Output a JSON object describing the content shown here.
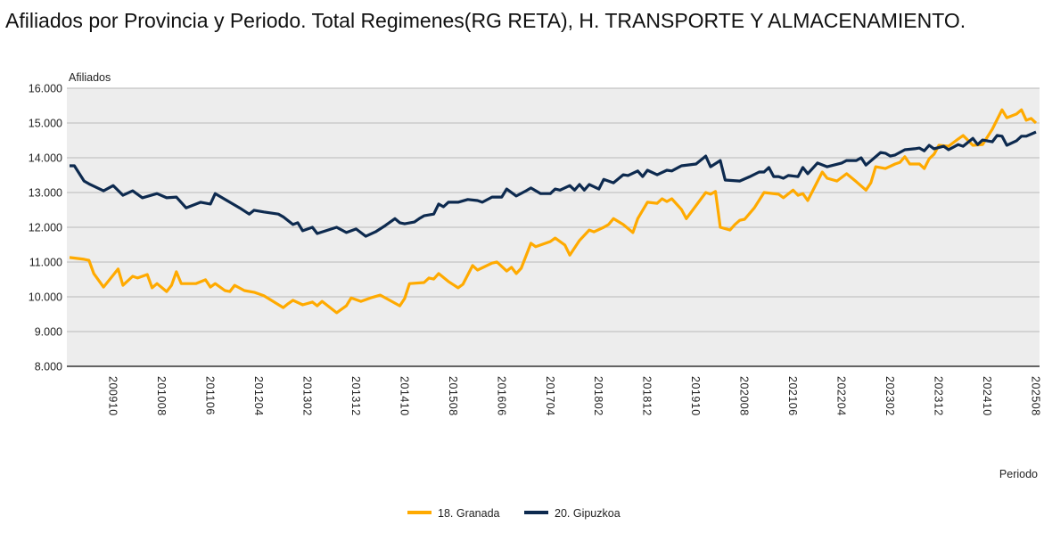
{
  "chart_data": {
    "type": "line",
    "title": "Afiliados por Provincia y Periodo. Total Regimenes(RG RETA), H. TRANSPORTE Y ALMACENAMIENTO.",
    "ylabel": "Afiliados",
    "xlabel": "Periodo",
    "ylim": [
      8000,
      16000
    ],
    "yticks": [
      16000,
      15000,
      14000,
      13000,
      12000,
      11000,
      10000,
      9000,
      8000
    ],
    "ytick_labels": [
      "16.000",
      "15.000",
      "14.000",
      "13.000",
      "12.000",
      "11.000",
      "10.000",
      "9.000",
      "8.000"
    ],
    "x_unit": "months since 200901",
    "xlim": [
      0,
      199
    ],
    "xticks": [
      9,
      19,
      29,
      39,
      49,
      59,
      69,
      79,
      89,
      99,
      109,
      119,
      129,
      139,
      149,
      159,
      169,
      179,
      189,
      199
    ],
    "xtick_labels": [
      "200910",
      "201008",
      "201106",
      "201204",
      "201302",
      "201312",
      "201410",
      "201508",
      "201606",
      "201704",
      "201802",
      "201812",
      "201910",
      "202008",
      "202106",
      "202204",
      "202302",
      "202312",
      "202410",
      "202508"
    ],
    "grid": true,
    "legend_position": "bottom-center",
    "series": [
      {
        "name": "18. Granada",
        "color": "#FFAA00",
        "points": [
          [
            0,
            11130
          ],
          [
            3,
            11080
          ],
          [
            4,
            11050
          ],
          [
            5,
            10670
          ],
          [
            7,
            10280
          ],
          [
            10,
            10800
          ],
          [
            11,
            10330
          ],
          [
            13,
            10590
          ],
          [
            14,
            10540
          ],
          [
            16,
            10640
          ],
          [
            17,
            10260
          ],
          [
            18,
            10380
          ],
          [
            20,
            10150
          ],
          [
            21,
            10330
          ],
          [
            22,
            10720
          ],
          [
            23,
            10380
          ],
          [
            26,
            10380
          ],
          [
            28,
            10490
          ],
          [
            29,
            10280
          ],
          [
            30,
            10380
          ],
          [
            32,
            10180
          ],
          [
            33,
            10150
          ],
          [
            34,
            10330
          ],
          [
            36,
            10180
          ],
          [
            38,
            10130
          ],
          [
            40,
            10030
          ],
          [
            44,
            9690
          ],
          [
            45,
            9800
          ],
          [
            46,
            9900
          ],
          [
            48,
            9770
          ],
          [
            50,
            9850
          ],
          [
            51,
            9740
          ],
          [
            52,
            9870
          ],
          [
            55,
            9540
          ],
          [
            57,
            9740
          ],
          [
            58,
            9970
          ],
          [
            60,
            9870
          ],
          [
            62,
            9970
          ],
          [
            64,
            10050
          ],
          [
            68,
            9740
          ],
          [
            69,
            9950
          ],
          [
            70,
            10380
          ],
          [
            73,
            10410
          ],
          [
            74,
            10540
          ],
          [
            75,
            10510
          ],
          [
            76,
            10670
          ],
          [
            78,
            10440
          ],
          [
            80,
            10260
          ],
          [
            81,
            10360
          ],
          [
            83,
            10900
          ],
          [
            84,
            10770
          ],
          [
            87,
            10970
          ],
          [
            88,
            11000
          ],
          [
            90,
            10740
          ],
          [
            91,
            10850
          ],
          [
            92,
            10670
          ],
          [
            93,
            10820
          ],
          [
            95,
            11540
          ],
          [
            96,
            11440
          ],
          [
            99,
            11590
          ],
          [
            100,
            11690
          ],
          [
            102,
            11490
          ],
          [
            103,
            11200
          ],
          [
            105,
            11620
          ],
          [
            107,
            11920
          ],
          [
            108,
            11870
          ],
          [
            110,
            12000
          ],
          [
            111,
            12080
          ],
          [
            112,
            12250
          ],
          [
            114,
            12080
          ],
          [
            116,
            11850
          ],
          [
            117,
            12250
          ],
          [
            119,
            12720
          ],
          [
            121,
            12690
          ],
          [
            122,
            12820
          ],
          [
            123,
            12740
          ],
          [
            124,
            12820
          ],
          [
            126,
            12510
          ],
          [
            127,
            12250
          ],
          [
            131,
            13000
          ],
          [
            132,
            12950
          ],
          [
            133,
            13030
          ],
          [
            134,
            12000
          ],
          [
            136,
            11920
          ],
          [
            137,
            12080
          ],
          [
            138,
            12200
          ],
          [
            139,
            12230
          ],
          [
            141,
            12560
          ],
          [
            143,
            13000
          ],
          [
            146,
            12950
          ],
          [
            147,
            12850
          ],
          [
            149,
            13070
          ],
          [
            150,
            12920
          ],
          [
            151,
            12970
          ],
          [
            152,
            12770
          ],
          [
            155,
            13590
          ],
          [
            156,
            13410
          ],
          [
            158,
            13330
          ],
          [
            160,
            13540
          ],
          [
            162,
            13310
          ],
          [
            164,
            13070
          ],
          [
            165,
            13280
          ],
          [
            166,
            13740
          ],
          [
            168,
            13690
          ],
          [
            170,
            13820
          ],
          [
            171,
            13870
          ],
          [
            172,
            14030
          ],
          [
            173,
            13820
          ],
          [
            175,
            13820
          ],
          [
            176,
            13690
          ],
          [
            177,
            13970
          ],
          [
            178,
            14100
          ],
          [
            179,
            14360
          ],
          [
            181,
            14330
          ],
          [
            183,
            14540
          ],
          [
            184,
            14640
          ],
          [
            186,
            14360
          ],
          [
            188,
            14380
          ],
          [
            190,
            14820
          ],
          [
            192,
            15380
          ],
          [
            193,
            15150
          ],
          [
            195,
            15260
          ],
          [
            196,
            15380
          ],
          [
            197,
            15080
          ],
          [
            198,
            15130
          ],
          [
            199,
            15000
          ]
        ]
      },
      {
        "name": "20. Gipuzkoa",
        "color": "#0D2A4F",
        "points": [
          [
            0,
            13770
          ],
          [
            1,
            13770
          ],
          [
            3,
            13330
          ],
          [
            4,
            13250
          ],
          [
            7,
            13050
          ],
          [
            9,
            13200
          ],
          [
            11,
            12920
          ],
          [
            13,
            13050
          ],
          [
            15,
            12850
          ],
          [
            18,
            12970
          ],
          [
            20,
            12850
          ],
          [
            22,
            12870
          ],
          [
            24,
            12560
          ],
          [
            27,
            12720
          ],
          [
            29,
            12670
          ],
          [
            30,
            12970
          ],
          [
            33,
            12720
          ],
          [
            35,
            12560
          ],
          [
            37,
            12380
          ],
          [
            38,
            12490
          ],
          [
            40,
            12440
          ],
          [
            43,
            12380
          ],
          [
            44,
            12300
          ],
          [
            46,
            12080
          ],
          [
            47,
            12130
          ],
          [
            48,
            11900
          ],
          [
            50,
            12000
          ],
          [
            51,
            11820
          ],
          [
            55,
            12000
          ],
          [
            57,
            11850
          ],
          [
            59,
            11950
          ],
          [
            61,
            11740
          ],
          [
            63,
            11870
          ],
          [
            65,
            12050
          ],
          [
            67,
            12250
          ],
          [
            68,
            12130
          ],
          [
            69,
            12100
          ],
          [
            71,
            12150
          ],
          [
            72,
            12250
          ],
          [
            73,
            12330
          ],
          [
            75,
            12380
          ],
          [
            76,
            12670
          ],
          [
            77,
            12590
          ],
          [
            78,
            12720
          ],
          [
            80,
            12720
          ],
          [
            82,
            12800
          ],
          [
            84,
            12770
          ],
          [
            85,
            12720
          ],
          [
            87,
            12870
          ],
          [
            89,
            12870
          ],
          [
            90,
            13100
          ],
          [
            92,
            12900
          ],
          [
            94,
            13050
          ],
          [
            95,
            13130
          ],
          [
            97,
            12970
          ],
          [
            99,
            12970
          ],
          [
            100,
            13100
          ],
          [
            101,
            13070
          ],
          [
            103,
            13200
          ],
          [
            104,
            13070
          ],
          [
            105,
            13230
          ],
          [
            106,
            13070
          ],
          [
            107,
            13230
          ],
          [
            109,
            13100
          ],
          [
            110,
            13380
          ],
          [
            112,
            13280
          ],
          [
            114,
            13510
          ],
          [
            115,
            13490
          ],
          [
            117,
            13620
          ],
          [
            118,
            13460
          ],
          [
            119,
            13640
          ],
          [
            121,
            13510
          ],
          [
            123,
            13640
          ],
          [
            124,
            13620
          ],
          [
            126,
            13770
          ],
          [
            129,
            13820
          ],
          [
            131,
            14050
          ],
          [
            132,
            13740
          ],
          [
            134,
            13920
          ],
          [
            135,
            13360
          ],
          [
            138,
            13330
          ],
          [
            140,
            13450
          ],
          [
            142,
            13590
          ],
          [
            143,
            13590
          ],
          [
            144,
            13720
          ],
          [
            145,
            13460
          ],
          [
            146,
            13460
          ],
          [
            147,
            13410
          ],
          [
            148,
            13490
          ],
          [
            150,
            13460
          ],
          [
            151,
            13720
          ],
          [
            152,
            13540
          ],
          [
            154,
            13850
          ],
          [
            156,
            13740
          ],
          [
            159,
            13850
          ],
          [
            160,
            13920
          ],
          [
            162,
            13920
          ],
          [
            163,
            14000
          ],
          [
            164,
            13790
          ],
          [
            167,
            14150
          ],
          [
            168,
            14130
          ],
          [
            169,
            14050
          ],
          [
            170,
            14080
          ],
          [
            172,
            14230
          ],
          [
            174,
            14260
          ],
          [
            175,
            14280
          ],
          [
            176,
            14200
          ],
          [
            177,
            14360
          ],
          [
            178,
            14260
          ],
          [
            180,
            14330
          ],
          [
            181,
            14230
          ],
          [
            183,
            14380
          ],
          [
            184,
            14330
          ],
          [
            186,
            14560
          ],
          [
            187,
            14380
          ],
          [
            188,
            14510
          ],
          [
            190,
            14460
          ],
          [
            191,
            14640
          ],
          [
            192,
            14620
          ],
          [
            193,
            14360
          ],
          [
            195,
            14490
          ],
          [
            196,
            14620
          ],
          [
            197,
            14620
          ],
          [
            199,
            14740
          ]
        ]
      }
    ]
  }
}
